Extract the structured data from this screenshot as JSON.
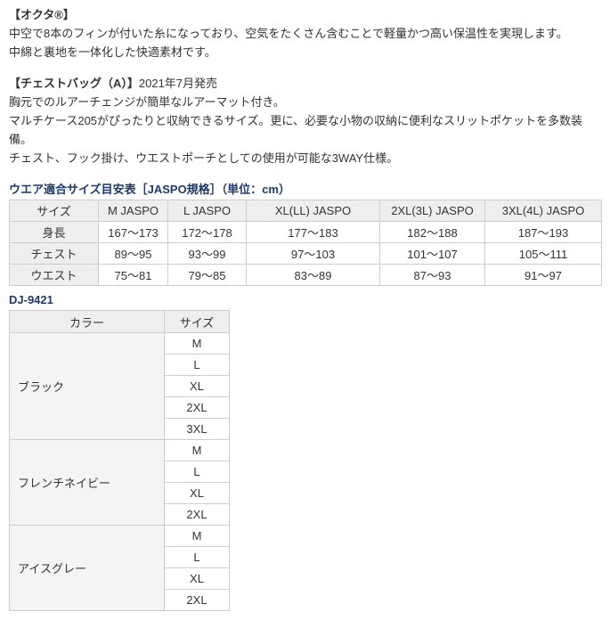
{
  "colors": {
    "heading_navy": "#1e3a68",
    "body_text": "#333333",
    "table_border": "#cccccc",
    "table_header_bg": "#eeeeee",
    "color_cell_bg": "#f4f4f4",
    "page_bg": "#ffffff"
  },
  "intro": {
    "octa_title": "【オクタ®】",
    "octa_line1": "中空で8本のフィンが付いた糸になっており、空気をたくさん含むことで軽量かつ高い保温性を実現します。",
    "octa_line2": "中綿と裏地を一体化した快適素材です。",
    "chest_title": "【チェストバッグ（A）】",
    "chest_release": "2021年7月発売",
    "chest_line1": "胸元でのルアーチェンジが簡単なルアーマット付き。",
    "chest_line2": "マルチケース205がぴったりと収納できるサイズ。更に、必要な小物の収納に便利なスリットポケットを多数装備。",
    "chest_line3": "チェスト、フック掛け、ウエストポーチとしての使用が可能な3WAY仕様。"
  },
  "size_table": {
    "title": "ウエア適合サイズ目安表［JASPO規格］（単位：cm）",
    "headers": [
      "サイズ",
      "M JASPO",
      "L JASPO",
      "XL(LL) JASPO",
      "2XL(3L) JASPO",
      "3XL(4L) JASPO"
    ],
    "rows": [
      {
        "label": "身長",
        "values": [
          "167～173",
          "172～178",
          "177～183",
          "182～188",
          "187～193"
        ]
      },
      {
        "label": "チェスト",
        "values": [
          "89～95",
          "93～99",
          "97～103",
          "101～107",
          "105～111"
        ]
      },
      {
        "label": "ウエスト",
        "values": [
          "75～81",
          "79～85",
          "83～89",
          "87～93",
          "91～97"
        ]
      }
    ]
  },
  "product_code": "DJ-9421",
  "color_table": {
    "headers": [
      "カラー",
      "サイズ"
    ],
    "groups": [
      {
        "color": "ブラック",
        "sizes": [
          "M",
          "L",
          "XL",
          "2XL",
          "3XL"
        ]
      },
      {
        "color": "フレンチネイビー",
        "sizes": [
          "M",
          "L",
          "XL",
          "2XL"
        ]
      },
      {
        "color": "アイスグレー",
        "sizes": [
          "M",
          "L",
          "XL",
          "2XL"
        ]
      }
    ]
  }
}
